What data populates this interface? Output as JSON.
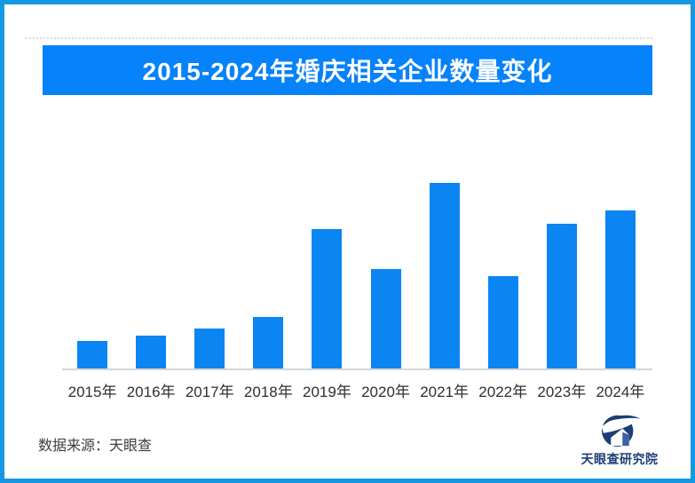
{
  "frame": {
    "border_color": "#1598e4",
    "background": "#ffffff"
  },
  "title_banner": {
    "text": "2015-2024年婚庆相关企业数量变化",
    "background": "#0682fa",
    "text_color": "#ffffff"
  },
  "chart_data": {
    "type": "bar",
    "title": "2015-2024年婚庆相关企业数量变化",
    "categories": [
      "2015年",
      "2016年",
      "2017年",
      "2018年",
      "2019年",
      "2020年",
      "2021年",
      "2022年",
      "2023年",
      "2024年"
    ],
    "values": [
      15,
      18,
      22,
      28,
      75,
      54,
      100,
      50,
      78,
      85
    ],
    "value_units": "relative index (chart shows no y-axis labels; 2021 peak = 100)",
    "xlabel": "",
    "ylabel": "",
    "ylim": [
      0,
      105
    ],
    "grid": false,
    "legend": false,
    "bar_color": "#0b85f1",
    "axis_line_color": "#d6d6d6",
    "tick_label_color": "#2f2f2f"
  },
  "footer": {
    "source_note": "数据来源：天眼查"
  },
  "logo": {
    "text": "天眼查研究院",
    "text_color": "#1c3e77",
    "icon": "tianyancha-eye-icon",
    "icon_dark_color": "#1c3e77",
    "icon_accent_color": "#3d5fa5"
  }
}
